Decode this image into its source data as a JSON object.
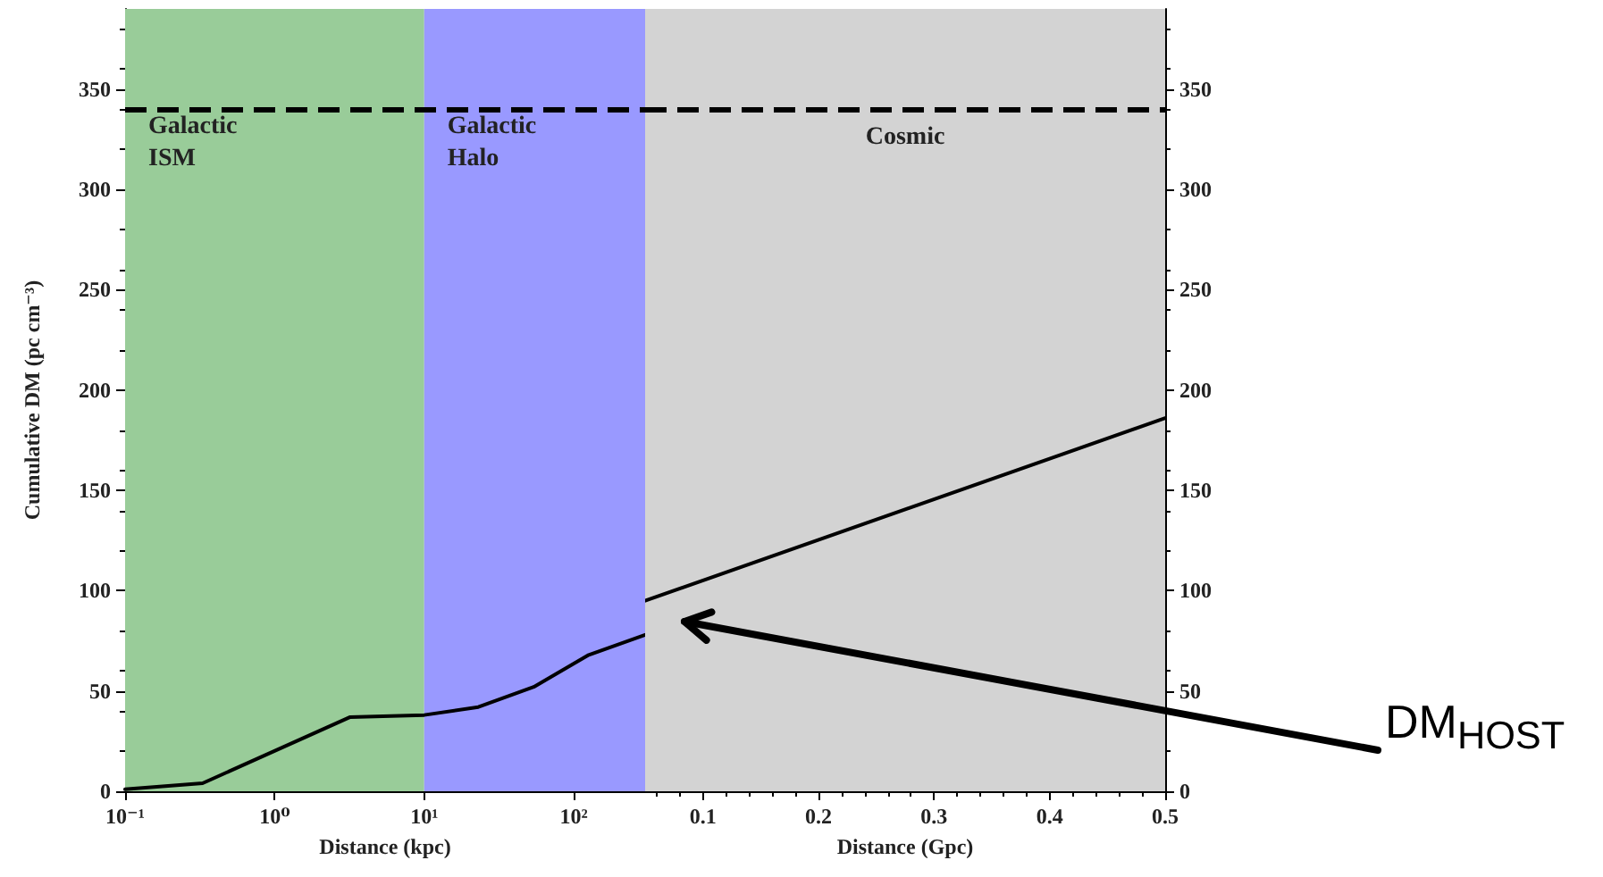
{
  "chart_data": [
    {
      "type": "line",
      "xlabel": "Distance (kpc)",
      "ylabel": "Cumulative DM (pc cm⁻³)",
      "log": "x",
      "x": [
        0.1,
        0.33,
        3.2,
        10,
        23,
        54,
        126,
        300
      ],
      "values": [
        1,
        4,
        37,
        38,
        42,
        52,
        68,
        78
      ],
      "color": "#000000",
      "xlim": [
        0.1,
        300
      ],
      "xticks": [
        {
          "value": 0.1,
          "label": "10⁻¹"
        },
        {
          "value": 1,
          "label": "10⁰"
        },
        {
          "value": 10,
          "label": "10¹"
        },
        {
          "value": 100,
          "label": "10²"
        }
      ],
      "ylim": [
        0,
        390
      ],
      "yticks": [
        0,
        50,
        100,
        150,
        200,
        250,
        300,
        350
      ],
      "bands": [
        {
          "axis": "x",
          "from": 0.1,
          "to": 10,
          "label": "Galactic ISM",
          "color": "#99cc99"
        },
        {
          "axis": "x",
          "from": 10,
          "to": 300,
          "label": "Galactic Halo",
          "color": "#9999ff"
        }
      ],
      "ref_lines": [
        {
          "axis": "y",
          "value": 340,
          "line_style": "dashed",
          "color": "#000000"
        }
      ]
    },
    {
      "type": "line",
      "xlabel": "Distance (Gpc)",
      "x": [
        0.05,
        0.5
      ],
      "values": [
        95,
        186
      ],
      "color": "#000000",
      "xlim": [
        0.05,
        0.5
      ],
      "xticks": [
        0.1,
        0.2,
        0.3,
        0.4,
        0.5
      ],
      "ylim": [
        0,
        390
      ],
      "yticks": [
        0,
        50,
        100,
        150,
        200,
        250,
        300,
        350
      ],
      "bands": [
        {
          "axis": "x",
          "from": 0.05,
          "to": 0.5,
          "label": "Cosmic",
          "color": "#d3d3d3"
        }
      ],
      "ref_lines": [
        {
          "axis": "y",
          "value": 340,
          "line_style": "dashed",
          "color": "#000000"
        }
      ],
      "annotations": [
        "DM$_{HOST}$"
      ]
    }
  ]
}
